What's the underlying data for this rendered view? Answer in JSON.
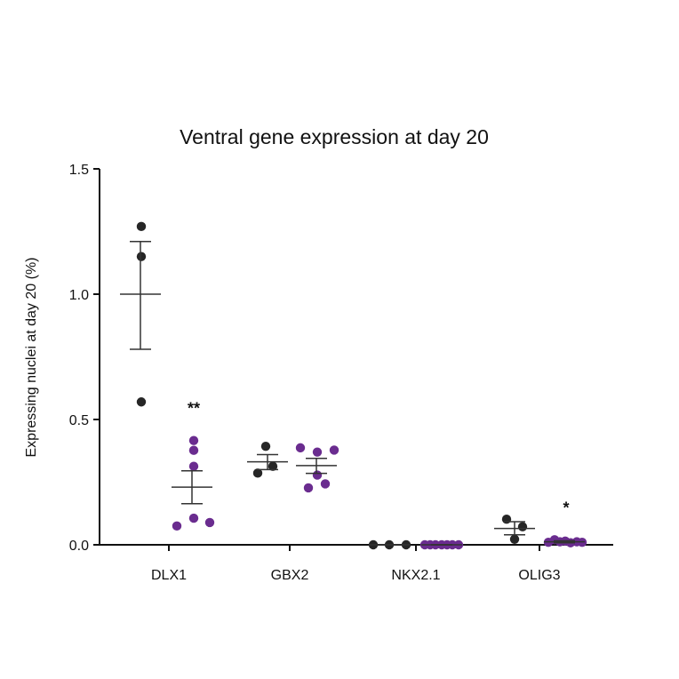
{
  "chart_data": {
    "type": "scatter",
    "title": "Ventral gene expression at day 20",
    "ylabel": "Expressing nuclei at day 20 (%)",
    "xlabel": "",
    "ylim": [
      0,
      1.5
    ],
    "yticks": [
      0.0,
      0.5,
      1.0,
      1.5
    ],
    "ytick_labels": [
      "0.0",
      "0.5",
      "1.0",
      "1.5"
    ],
    "grid": false,
    "categories": [
      "DLX1",
      "GBX2",
      "NKX2.1",
      "OLIG3"
    ],
    "colors": {
      "group1": "#262626",
      "group2": "#6a2c8f"
    },
    "groups": [
      {
        "category": "DLX1",
        "color": "#262626",
        "points": [
          1.27,
          1.15,
          0.57
        ],
        "mean": 1.0,
        "sem": [
          0.78,
          1.21
        ],
        "annotation": ""
      },
      {
        "category": "DLX1",
        "color": "#6a2c8f",
        "points": [
          0.075,
          0.106,
          0.416,
          0.377,
          0.313,
          0.089
        ],
        "mean": 0.23,
        "sem": [
          0.164,
          0.295
        ],
        "annotation": "**"
      },
      {
        "category": "GBX2",
        "color": "#262626",
        "points": [
          0.286,
          0.393,
          0.313
        ],
        "mean": 0.331,
        "sem": [
          0.3,
          0.36
        ],
        "annotation": ""
      },
      {
        "category": "GBX2",
        "color": "#6a2c8f",
        "points": [
          0.387,
          0.227,
          0.37,
          0.278,
          0.243,
          0.378
        ],
        "mean": 0.316,
        "sem": [
          0.285,
          0.345
        ],
        "annotation": ""
      },
      {
        "category": "NKX2.1",
        "color": "#262626",
        "points": [
          0,
          0,
          0
        ],
        "mean": 0,
        "sem": [
          0,
          0
        ],
        "annotation": ""
      },
      {
        "category": "NKX2.1",
        "color": "#6a2c8f",
        "points": [
          0,
          0,
          0,
          0,
          0,
          0,
          0
        ],
        "mean": 0,
        "sem": [
          0,
          0
        ],
        "annotation": ""
      },
      {
        "category": "OLIG3",
        "color": "#262626",
        "points": [
          0.102,
          0.022,
          0.072
        ],
        "mean": 0.065,
        "sem": [
          0.04,
          0.092
        ],
        "annotation": ""
      },
      {
        "category": "OLIG3",
        "color": "#6a2c8f",
        "points": [
          0.01,
          0.02,
          0.012,
          0.015,
          0.008,
          0.012,
          0.01
        ],
        "mean": 0.012,
        "sem": [
          0.008,
          0.016
        ],
        "annotation": "*"
      }
    ]
  }
}
